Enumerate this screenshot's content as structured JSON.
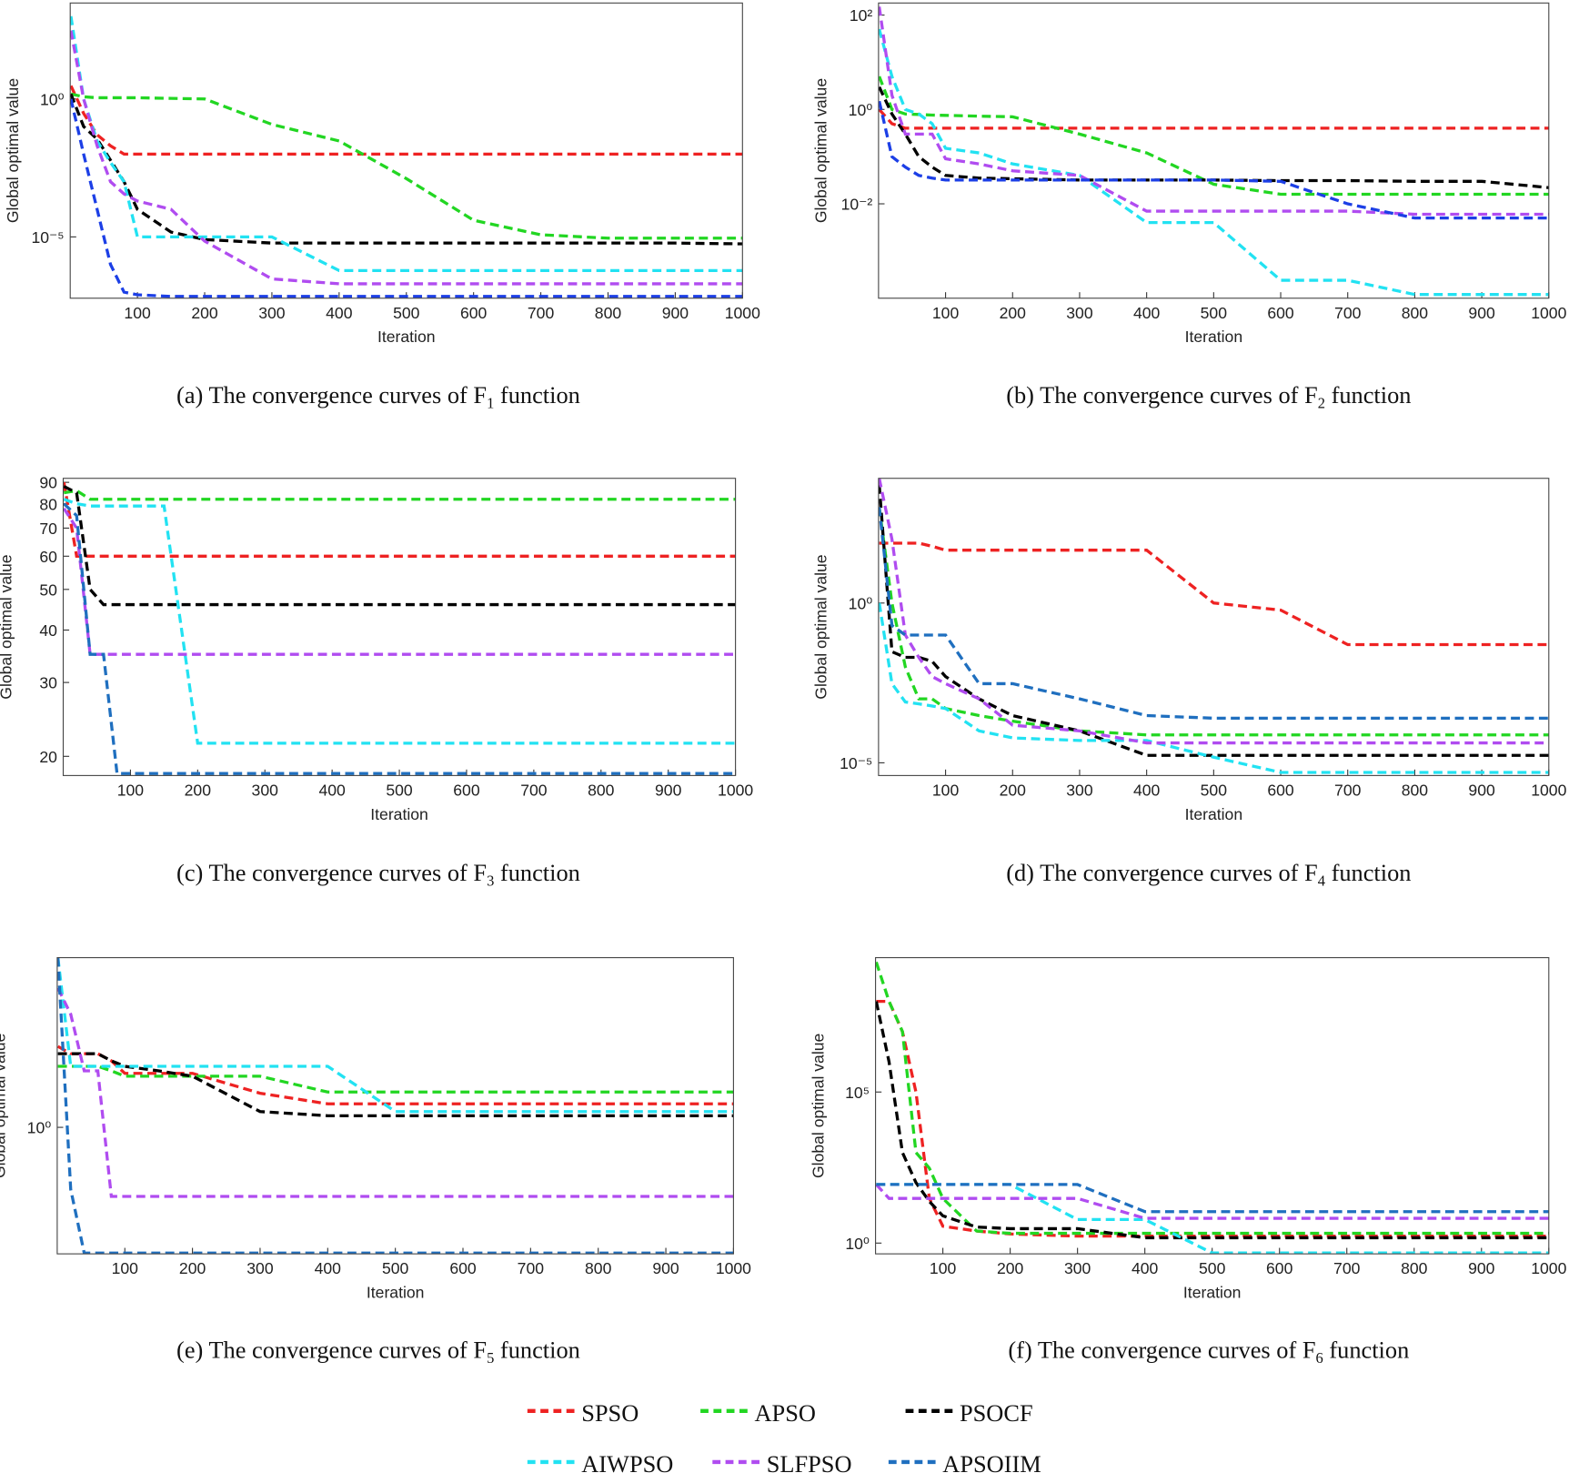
{
  "chart_data": [
    {
      "type": "line",
      "caption": [
        "(a) The convergence curves of F",
        "1",
        " function"
      ],
      "xlabel": "Iteration",
      "ylabel": "Global optimal value",
      "yscale": "log",
      "x": [
        1,
        20,
        40,
        60,
        80,
        100,
        150,
        200,
        300,
        400,
        500,
        600,
        700,
        800,
        900,
        1000
      ],
      "xlim": [
        0,
        1000
      ],
      "xticks": [
        100,
        200,
        300,
        400,
        500,
        600,
        700,
        800,
        900,
        1000
      ],
      "ylim": [
        6e-08,
        3000
      ],
      "yticks": [
        {
          "value": 1,
          "label": "10⁰"
        },
        {
          "value": 1e-05,
          "label": "10⁻⁵"
        }
      ],
      "series": [
        {
          "color": "#ee2222",
          "values": [
            3,
            0.3,
            0.05,
            0.02,
            0.01,
            0.01,
            0.01,
            0.01,
            0.01,
            0.01,
            0.01,
            0.01,
            0.01,
            0.01,
            0.01,
            0.01
          ]
        },
        {
          "color": "#22d622",
          "values": [
            1.5,
            1.2,
            1.1,
            1.1,
            1.1,
            1.1,
            1.05,
            1,
            0.12,
            0.03,
            0.0013,
            4e-05,
            1.2e-05,
            9e-06,
            9e-06,
            9e-06
          ]
        },
        {
          "color": "#000000",
          "values": [
            1.5,
            0.1,
            0.035,
            0.006,
            0.001,
            0.0001,
            1.5e-05,
            8e-06,
            6e-06,
            6e-06,
            6e-06,
            6e-06,
            6e-06,
            6e-06,
            6e-06,
            5.6e-06
          ]
        },
        {
          "color": "#22e2f2",
          "values": [
            1000,
            1,
            0.03,
            0.005,
            0.001,
            1e-05,
            1e-05,
            1e-05,
            1e-05,
            6e-07,
            6e-07,
            6e-07,
            6e-07,
            6e-07,
            6e-07,
            6e-07
          ]
        },
        {
          "color": "#b04cf0",
          "values": [
            300,
            1,
            0.02,
            0.001,
            0.00036,
            0.0002,
            0.0001,
            7e-06,
            3e-07,
            2e-07,
            2e-07,
            2e-07,
            2e-07,
            2e-07,
            2e-07,
            2e-07
          ]
        },
        {
          "color": "#1c3fe6",
          "values": [
            1,
            0.01,
            0.0001,
            1e-06,
            1e-07,
            8e-08,
            7e-08,
            7e-08,
            7e-08,
            7e-08,
            7e-08,
            7e-08,
            7e-08,
            7e-08,
            7e-08,
            7e-08
          ]
        }
      ]
    },
    {
      "type": "line",
      "caption": [
        "(b) The convergence curves of F",
        "2",
        " function"
      ],
      "xlabel": "Iteration",
      "ylabel": "Global optimal value",
      "yscale": "log",
      "x": [
        1,
        20,
        40,
        60,
        80,
        100,
        150,
        200,
        300,
        400,
        500,
        600,
        700,
        800,
        900,
        1000
      ],
      "xlim": [
        0,
        1000
      ],
      "xticks": [
        100,
        200,
        300,
        400,
        500,
        600,
        700,
        800,
        900,
        1000
      ],
      "ylim": [
        0.0001,
        180
      ],
      "yticks": [
        {
          "value": 100,
          "label": "10²"
        },
        {
          "value": 1,
          "label": "10⁰"
        },
        {
          "value": 0.01,
          "label": "10⁻²"
        }
      ],
      "series": [
        {
          "color": "#ee2222",
          "values": [
            1,
            0.5,
            0.4,
            0.4,
            0.4,
            0.4,
            0.4,
            0.4,
            0.4,
            0.4,
            0.4,
            0.4,
            0.4,
            0.4,
            0.4,
            0.4
          ]
        },
        {
          "color": "#22d622",
          "values": [
            5,
            1,
            0.8,
            0.78,
            0.76,
            0.75,
            0.72,
            0.7,
            0.3,
            0.12,
            0.026,
            0.016,
            0.016,
            0.016,
            0.016,
            0.016
          ]
        },
        {
          "color": "#000000",
          "values": [
            3,
            0.8,
            0.3,
            0.1,
            0.06,
            0.04,
            0.035,
            0.034,
            0.032,
            0.032,
            0.032,
            0.031,
            0.031,
            0.03,
            0.03,
            0.022
          ]
        },
        {
          "color": "#22e2f2",
          "values": [
            50,
            5,
            1,
            0.8,
            0.5,
            0.15,
            0.12,
            0.07,
            0.04,
            0.004,
            0.004,
            0.00024,
            0.00024,
            0.00012,
            0.00012,
            0.00012
          ]
        },
        {
          "color": "#b04cf0",
          "values": [
            150,
            2,
            0.3,
            0.3,
            0.3,
            0.09,
            0.07,
            0.05,
            0.04,
            0.007,
            0.007,
            0.007,
            0.007,
            0.006,
            0.006,
            0.006
          ]
        },
        {
          "color": "#1c3fe6",
          "values": [
            1.5,
            0.1,
            0.06,
            0.04,
            0.035,
            0.032,
            0.032,
            0.032,
            0.032,
            0.032,
            0.032,
            0.03,
            0.01,
            0.005,
            0.005,
            0.005
          ]
        }
      ]
    },
    {
      "type": "line",
      "caption": [
        "(c) The convergence curves of F",
        "3",
        " function"
      ],
      "xlabel": "Iteration",
      "ylabel": "Global optimal value",
      "yscale": "log",
      "x": [
        1,
        20,
        40,
        60,
        80,
        100,
        150,
        200,
        300,
        400,
        500,
        600,
        700,
        800,
        900,
        1000
      ],
      "xlim": [
        0,
        1000
      ],
      "xticks": [
        100,
        200,
        300,
        400,
        500,
        600,
        700,
        800,
        900,
        1000
      ],
      "ylim": [
        18,
        92
      ],
      "yticks": [
        20,
        30,
        40,
        50,
        60,
        70,
        80,
        90
      ],
      "series": [
        {
          "color": "#ee2222",
          "values": [
            90,
            60,
            60,
            60,
            60,
            60,
            60,
            60,
            60,
            60,
            60,
            60,
            60,
            60,
            60,
            60
          ]
        },
        {
          "color": "#22d622",
          "values": [
            85,
            86,
            82,
            82,
            82,
            82,
            82,
            82,
            82,
            82,
            82,
            82,
            82,
            82,
            82,
            82
          ]
        },
        {
          "color": "#000000",
          "values": [
            88,
            85,
            50,
            46,
            46,
            46,
            46,
            46,
            46,
            46,
            46,
            46,
            46,
            46,
            46,
            46
          ]
        },
        {
          "color": "#22e2f2",
          "values": [
            82,
            80,
            79,
            79,
            79,
            79,
            79,
            21.5,
            21.5,
            21.5,
            21.5,
            21.5,
            21.5,
            21.5,
            21.5,
            21.5
          ]
        },
        {
          "color": "#b04cf0",
          "values": [
            78,
            70,
            35,
            35,
            35,
            35,
            35,
            35,
            35,
            35,
            35,
            35,
            35,
            35,
            35,
            35
          ]
        },
        {
          "color": "#1f6fbf",
          "values": [
            80,
            75,
            35,
            35,
            18.2,
            18.2,
            18.2,
            18.2,
            18.2,
            18.2,
            18.2,
            18.2,
            18.2,
            18.2,
            18.2,
            18.2
          ]
        }
      ]
    },
    {
      "type": "line",
      "caption": [
        "(d) The convergence curves of F",
        "4",
        " function"
      ],
      "xlabel": "Iteration",
      "ylabel": "Global optimal value",
      "yscale": "log",
      "x": [
        1,
        20,
        40,
        60,
        80,
        100,
        150,
        200,
        300,
        400,
        500,
        600,
        700,
        800,
        900,
        1000
      ],
      "xlim": [
        0,
        1000
      ],
      "xticks": [
        100,
        200,
        300,
        400,
        500,
        600,
        700,
        800,
        900,
        1000
      ],
      "ylim": [
        4e-06,
        8000
      ],
      "yticks": [
        {
          "value": 1,
          "label": "10⁰"
        },
        {
          "value": 1e-05,
          "label": "10⁻⁵"
        }
      ],
      "series": [
        {
          "color": "#ee2222",
          "values": [
            75,
            75,
            75,
            75,
            60,
            45,
            45,
            45,
            45,
            45,
            1,
            0.6,
            0.05,
            0.05,
            0.05,
            0.05
          ]
        },
        {
          "color": "#22d622",
          "values": [
            1000,
            1,
            0.01,
            0.001,
            0.001,
            0.0005,
            0.0003,
            0.0002,
            0.0001,
            7.5e-05,
            7.5e-05,
            7.5e-05,
            7.5e-05,
            7.5e-05,
            7.5e-05,
            7.5e-05
          ]
        },
        {
          "color": "#000000",
          "values": [
            5000,
            0.03,
            0.02,
            0.02,
            0.015,
            0.005,
            0.001,
            0.0003,
            0.0001,
            1.7e-05,
            1.7e-05,
            1.7e-05,
            1.7e-05,
            1.7e-05,
            1.7e-05,
            1.7e-05
          ]
        },
        {
          "color": "#22e2f2",
          "values": [
            1,
            0.003,
            0.0008,
            0.0007,
            0.0006,
            0.0005,
            0.0001,
            6e-05,
            5e-05,
            5e-05,
            1.5e-05,
            5e-06,
            5e-06,
            5e-06,
            5e-06,
            5e-06
          ]
        },
        {
          "color": "#b04cf0",
          "values": [
            8000,
            100,
            0.1,
            0.02,
            0.005,
            0.003,
            0.001,
            0.00015,
            0.0001,
            4.2e-05,
            4.2e-05,
            4.2e-05,
            4.2e-05,
            4.2e-05,
            4.2e-05,
            4.2e-05
          ]
        },
        {
          "color": "#1f6fbf",
          "values": [
            1000,
            0.2,
            0.1,
            0.1,
            0.1,
            0.1,
            0.003,
            0.003,
            0.001,
            0.0003,
            0.00025,
            0.00025,
            0.00025,
            0.00025,
            0.00025,
            0.00025
          ]
        }
      ]
    },
    {
      "type": "line",
      "caption": [
        "(e) The convergence curves of F",
        "5",
        " function"
      ],
      "xlabel": "Iteration",
      "ylabel": "Global optimal value",
      "yscale": "log",
      "x": [
        1,
        20,
        40,
        60,
        80,
        100,
        150,
        200,
        300,
        400,
        500,
        600,
        700,
        800,
        900,
        1000
      ],
      "xlim": [
        0,
        1000
      ],
      "xticks": [
        100,
        200,
        300,
        400,
        500,
        600,
        700,
        800,
        900,
        1000
      ],
      "ylim": [
        0.0058,
        1000
      ],
      "yticks": [
        {
          "value": 1,
          "label": "10⁰"
        }
      ],
      "series": [
        {
          "color": "#ee2222",
          "values": [
            27,
            20,
            20,
            20,
            15,
            9,
            9,
            9,
            4,
            2.6,
            2.6,
            2.6,
            2.6,
            2.6,
            2.6,
            2.6
          ]
        },
        {
          "color": "#22d622",
          "values": [
            12,
            12,
            12,
            12,
            10,
            8,
            8,
            8,
            8,
            4.2,
            4.2,
            4.2,
            4.2,
            4.2,
            4.2,
            4.2
          ]
        },
        {
          "color": "#000000",
          "values": [
            20,
            20,
            20,
            20,
            15,
            12,
            10,
            8,
            1.9,
            1.6,
            1.6,
            1.6,
            1.6,
            1.6,
            1.6,
            1.6
          ]
        },
        {
          "color": "#22e2f2",
          "values": [
            1000,
            12,
            12,
            12,
            12,
            12,
            12,
            12,
            12,
            12,
            1.9,
            1.9,
            1.9,
            1.9,
            1.9,
            1.9
          ]
        },
        {
          "color": "#b04cf0",
          "values": [
            290,
            100,
            10,
            10,
            0.06,
            0.06,
            0.06,
            0.06,
            0.06,
            0.06,
            0.06,
            0.06,
            0.06,
            0.06,
            0.06,
            0.06
          ]
        },
        {
          "color": "#1f6fbf",
          "values": [
            1000,
            0.08,
            0.006,
            0.006,
            0.006,
            0.006,
            0.006,
            0.006,
            0.006,
            0.006,
            0.006,
            0.006,
            0.006,
            0.006,
            0.006,
            0.006
          ]
        }
      ]
    },
    {
      "type": "line",
      "caption": [
        "(f) The convergence curves of F",
        "6",
        " function"
      ],
      "xlabel": "Iteration",
      "ylabel": "Global optimal value",
      "yscale": "log",
      "x": [
        1,
        20,
        40,
        60,
        80,
        100,
        150,
        200,
        300,
        400,
        500,
        600,
        700,
        800,
        900,
        1000
      ],
      "xlim": [
        0,
        1000
      ],
      "xticks": [
        100,
        200,
        300,
        400,
        500,
        600,
        700,
        800,
        900,
        1000
      ],
      "ylim": [
        0.44,
        2800000000
      ],
      "yticks": [
        {
          "value": 1,
          "label": "10⁰"
        },
        {
          "value": 100000,
          "label": "10⁵"
        }
      ],
      "series": [
        {
          "color": "#ee2222",
          "values": [
            100000000,
            100000000,
            10000000,
            100000,
            30,
            3.6,
            2.5,
            2,
            1.7,
            1.7,
            1.7,
            1.7,
            1.7,
            1.7,
            1.7,
            1.7
          ]
        },
        {
          "color": "#22d622",
          "values": [
            2000000000,
            100000000,
            10000000,
            1000,
            300,
            30,
            2.5,
            2.1,
            2.1,
            2.1,
            2.1,
            2.1,
            2.1,
            2.1,
            2.1,
            2.1
          ]
        },
        {
          "color": "#000000",
          "values": [
            100000000,
            1000000,
            1000,
            100,
            24,
            8,
            3.4,
            3,
            3,
            1.5,
            1.5,
            1.5,
            1.5,
            1.5,
            1.5,
            1.5
          ]
        },
        {
          "color": "#22e2f2",
          "values": [
            87,
            87,
            87,
            87,
            87,
            87,
            87,
            87,
            6,
            6,
            0.47,
            0.47,
            0.47,
            0.47,
            0.47,
            0.47
          ]
        },
        {
          "color": "#b04cf0",
          "values": [
            87,
            30,
            30,
            30,
            30,
            30,
            30,
            30,
            30,
            6.6,
            6.6,
            6.6,
            6.6,
            6.6,
            6.6,
            6.6
          ]
        },
        {
          "color": "#1f6fbf",
          "values": [
            87,
            87,
            87,
            87,
            87,
            87,
            87,
            87,
            87,
            11,
            11,
            11,
            11,
            11,
            11,
            11
          ]
        }
      ]
    }
  ],
  "legend": {
    "items": [
      {
        "name": "SPSO",
        "color": "#ee2222"
      },
      {
        "name": "APSO",
        "color": "#22d622"
      },
      {
        "name": "PSOCF",
        "color": "#000000"
      },
      {
        "name": "AIWPSO",
        "color": "#22e2f2"
      },
      {
        "name": "SLFPSO",
        "color": "#b04cf0"
      },
      {
        "name": "APSOIIM",
        "color": "#1f6fbf"
      }
    ]
  }
}
